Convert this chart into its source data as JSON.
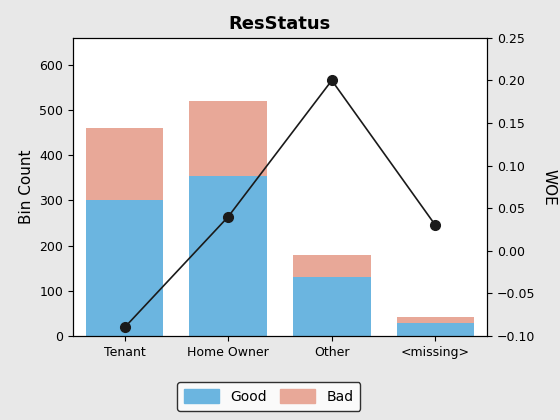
{
  "categories": [
    "Tenant",
    "Home Owner",
    "Other",
    "<missing>"
  ],
  "good_values": [
    300,
    355,
    130,
    28
  ],
  "bad_values": [
    160,
    165,
    50,
    15
  ],
  "woe_values": [
    -0.09,
    0.04,
    0.2,
    0.03
  ],
  "good_color": "#6BB5E0",
  "bad_color": "#E8A898",
  "woe_line_color": "#1A1A1A",
  "title": "ResStatus",
  "ylabel_left": "Bin Count",
  "ylabel_right": "WOE",
  "ylim_left": [
    0,
    660
  ],
  "ylim_right": [
    -0.1,
    0.25
  ],
  "yticks_left": [
    0,
    100,
    200,
    300,
    400,
    500,
    600
  ],
  "yticks_right": [
    -0.1,
    -0.05,
    0,
    0.05,
    0.1,
    0.15,
    0.2,
    0.25
  ],
  "legend_labels": [
    "Good",
    "Bad"
  ],
  "background_color": "#E8E8E8",
  "axes_background_color": "#FFFFFF"
}
